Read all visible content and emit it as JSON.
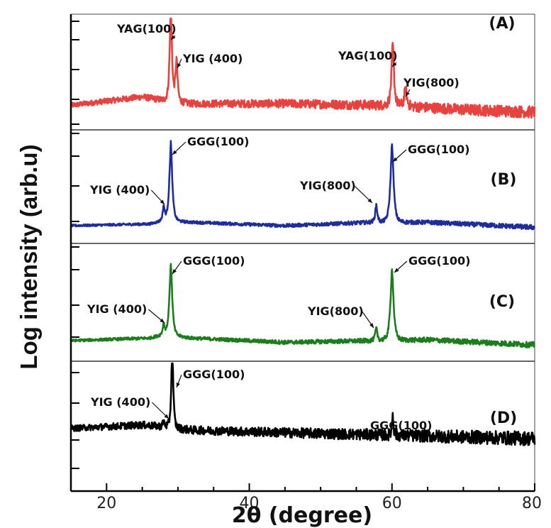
{
  "chart_data": {
    "type": "line",
    "xlabel": "2θ (degree)",
    "ylabel": "Log intensity (arb.u)",
    "xlim": [
      15,
      80
    ],
    "xticks": [
      20,
      40,
      60,
      80
    ],
    "y_scale": "log",
    "grid": false,
    "legend": "none",
    "panels": [
      {
        "id": "A",
        "tag": "(A)",
        "color": "#e8423f",
        "baseline": [
          [
            15,
            0.18
          ],
          [
            25,
            0.28
          ],
          [
            28,
            0.24
          ],
          [
            32,
            0.2
          ],
          [
            45,
            0.2
          ],
          [
            60,
            0.18
          ],
          [
            70,
            0.13
          ],
          [
            80,
            0.1
          ]
        ],
        "peaks": [
          {
            "x": 29.0,
            "height": 1.0,
            "width": 0.35
          },
          {
            "x": 29.8,
            "height": 0.42,
            "width": 0.35
          },
          {
            "x": 60.1,
            "height": 0.62,
            "width": 0.4
          },
          {
            "x": 61.9,
            "height": 0.18,
            "width": 0.4
          }
        ],
        "noise": 0.03,
        "annotations": [
          {
            "text": "YAG(100)",
            "x": 29.0
          },
          {
            "text": "YIG (400)",
            "x": 29.8
          },
          {
            "text": "YAG(100)",
            "x": 60.1
          },
          {
            "text": "YIG(800)",
            "x": 61.9
          }
        ]
      },
      {
        "id": "B",
        "tag": "(B)",
        "color": "#1f2d9c",
        "baseline": [
          [
            15,
            0.0
          ],
          [
            26,
            0.02
          ],
          [
            28,
            0.06
          ],
          [
            32,
            0.04
          ],
          [
            45,
            0.0
          ],
          [
            57,
            0.04
          ],
          [
            65,
            0.04
          ],
          [
            80,
            -0.02
          ]
        ],
        "peaks": [
          {
            "x": 28.0,
            "height": 0.18,
            "width": 0.3
          },
          {
            "x": 29.0,
            "height": 1.0,
            "width": 0.45
          },
          {
            "x": 57.8,
            "height": 0.22,
            "width": 0.35
          },
          {
            "x": 60.0,
            "height": 1.0,
            "width": 0.5
          }
        ],
        "noise": 0.012,
        "annotations": [
          {
            "text": "YIG (400)",
            "x": 28.0
          },
          {
            "text": "GGG(100)",
            "x": 29.0
          },
          {
            "text": "YIG(800)",
            "x": 57.8
          },
          {
            "text": "GGG(100)",
            "x": 60.0
          }
        ]
      },
      {
        "id": "C",
        "tag": "(C)",
        "color": "#1d7d1d",
        "baseline": [
          [
            15,
            0.05
          ],
          [
            26,
            0.08
          ],
          [
            28,
            0.12
          ],
          [
            32,
            0.08
          ],
          [
            45,
            0.03
          ],
          [
            57,
            0.05
          ],
          [
            65,
            0.06
          ],
          [
            80,
            0.0
          ]
        ],
        "peaks": [
          {
            "x": 28.0,
            "height": 0.14,
            "width": 0.3
          },
          {
            "x": 29.0,
            "height": 0.95,
            "width": 0.45
          },
          {
            "x": 57.8,
            "height": 0.16,
            "width": 0.35
          },
          {
            "x": 60.0,
            "height": 0.95,
            "width": 0.5
          }
        ],
        "noise": 0.014,
        "annotations": [
          {
            "text": "YIG (400)",
            "x": 28.0
          },
          {
            "text": "GGG(100)",
            "x": 29.0
          },
          {
            "text": "YIG(800)",
            "x": 57.8
          },
          {
            "text": "GGG(100)",
            "x": 60.0
          }
        ]
      },
      {
        "id": "D",
        "tag": "(D)",
        "color": "#000000",
        "baseline": [
          [
            15,
            0.22
          ],
          [
            25,
            0.26
          ],
          [
            28,
            0.24
          ],
          [
            32,
            0.2
          ],
          [
            45,
            0.17
          ],
          [
            60,
            0.14
          ],
          [
            70,
            0.12
          ],
          [
            80,
            0.1
          ]
        ],
        "peaks": [
          {
            "x": 28.0,
            "height": 0.06,
            "width": 0.3
          },
          {
            "x": 29.2,
            "height": 1.0,
            "width": 0.3
          },
          {
            "x": 60.1,
            "height": 0.25,
            "width": 0.25
          }
        ],
        "noise": 0.035,
        "annotations": [
          {
            "text": "YIG (400)",
            "x": 28.0
          },
          {
            "text": "GGG(100)",
            "x": 29.2
          },
          {
            "text": "GGG(100)",
            "x": 60.1
          }
        ]
      }
    ]
  }
}
